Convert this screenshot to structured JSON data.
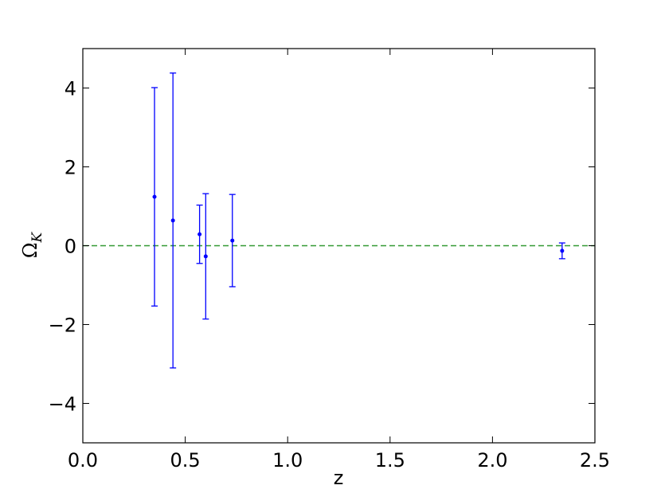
{
  "chart_data": {
    "type": "errorbar",
    "xlabel": "z",
    "ylabel": "Ω",
    "ylabel_subscript": "K",
    "xlim": [
      0,
      2.5
    ],
    "ylim": [
      -5,
      5
    ],
    "xticks": [
      {
        "value": 0,
        "label": "0.0"
      },
      {
        "value": 0.5,
        "label": "0.5"
      },
      {
        "value": 1,
        "label": "1.0"
      },
      {
        "value": 1.5,
        "label": "1.5"
      },
      {
        "value": 2,
        "label": "2.0"
      },
      {
        "value": 2.5,
        "label": "2.5"
      }
    ],
    "yticks": [
      {
        "value": -4,
        "label": "−4"
      },
      {
        "value": -2,
        "label": "−2"
      },
      0,
      2,
      4
    ],
    "reference_line": {
      "value": 0,
      "color": "#339933"
    },
    "series": [
      {
        "color": "#0000ff",
        "x": [
          0.35,
          0.44,
          0.57,
          0.6,
          0.73,
          2.34
        ],
        "values": [
          1.24,
          0.64,
          0.29,
          -0.27,
          0.13,
          -0.13
        ],
        "errors": [
          2.77,
          3.74,
          0.74,
          1.59,
          1.17,
          0.2
        ]
      }
    ]
  }
}
